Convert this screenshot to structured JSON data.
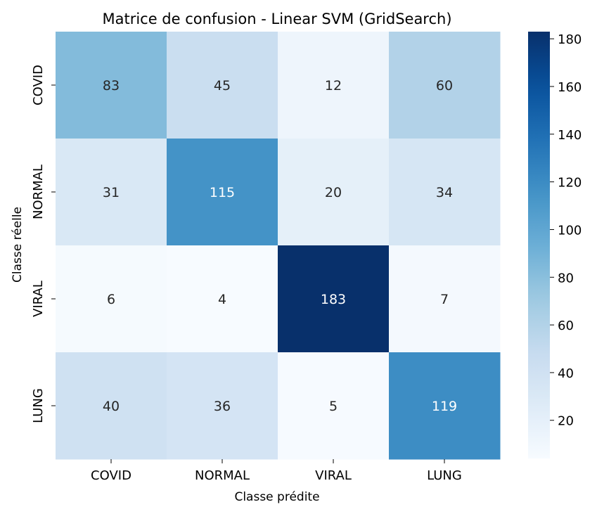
{
  "chart_data": {
    "type": "heatmap",
    "title": "Matrice de confusion - Linear SVM (GridSearch)",
    "xlabel": "Classe prédite",
    "ylabel": "Classe réelle",
    "x_categories": [
      "COVID",
      "NORMAL",
      "VIRAL",
      "LUNG"
    ],
    "y_categories": [
      "COVID",
      "NORMAL",
      "VIRAL",
      "LUNG"
    ],
    "values": [
      [
        83,
        45,
        12,
        60
      ],
      [
        31,
        115,
        20,
        34
      ],
      [
        6,
        4,
        183,
        7
      ],
      [
        40,
        36,
        5,
        119
      ]
    ],
    "colormap": "Blues",
    "color_range": [
      4,
      183
    ],
    "colorbar_ticks": [
      20,
      40,
      60,
      80,
      100,
      120,
      140,
      160,
      180
    ],
    "annotations": true,
    "grid": false
  }
}
